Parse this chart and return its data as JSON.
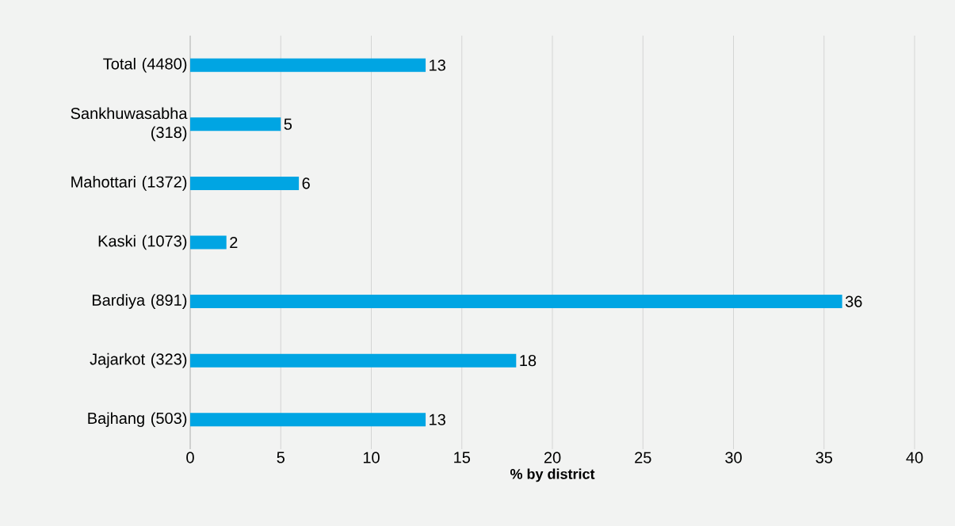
{
  "chart_data": {
    "type": "bar",
    "orientation": "horizontal",
    "categories": [
      "Total (4480)",
      "Sankhuwasabha (318)",
      "Mahottari (1372)",
      "Kaski (1073)",
      "Bardiya (891)",
      "Jajarkot (323)",
      "Bajhang (503)"
    ],
    "values": [
      13,
      5,
      6,
      2,
      36,
      18,
      13
    ],
    "color": "#00a5e3",
    "data_labels": true,
    "xlabel": "% by district",
    "xlim": [
      0,
      40
    ],
    "xticks": [
      0,
      5,
      10,
      15,
      20,
      25,
      30,
      35,
      40
    ],
    "grid": "x"
  }
}
